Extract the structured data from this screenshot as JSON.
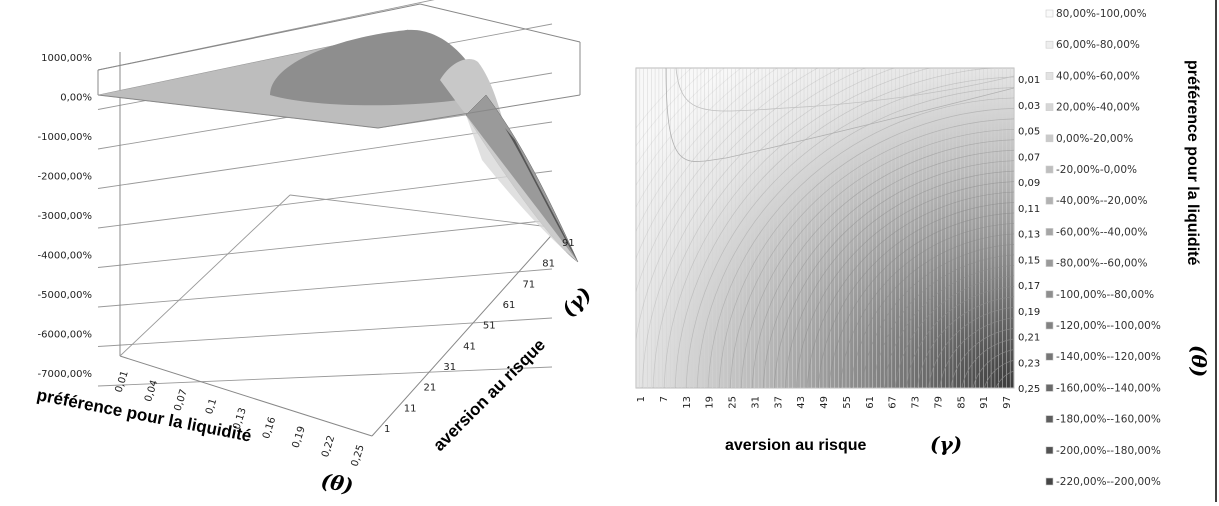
{
  "figure": {
    "panels": [
      "surface-3d",
      "contour"
    ]
  },
  "chart_data": [
    {
      "type": "surface",
      "z_ticks": [
        "1000,00%",
        "0,00%",
        "-1000,00%",
        "-2000,00%",
        "-3000,00%",
        "-4000,00%",
        "-5000,00%",
        "-6000,00%",
        "-7000,00%"
      ],
      "zlim": [
        -7000,
        1000
      ],
      "x_label": "préférence pour la liquidité",
      "x_symbol": "(θ)",
      "x_ticks": [
        "0,01",
        "0,04",
        "0,07",
        "0,1",
        "0,13",
        "0,16",
        "0,19",
        "0,22",
        "0,25"
      ],
      "y_label": "aversion au risque",
      "y_symbol": "(γ)",
      "y_ticks": [
        "1",
        "11",
        "21",
        "31",
        "41",
        "51",
        "61",
        "71",
        "81",
        "91"
      ],
      "shading_levels": [
        "#bdbdbd",
        "#8e8e8e",
        "#c8c8c8",
        "#9a9a9a",
        "#555555"
      ]
    },
    {
      "type": "heatmap",
      "x_label": "aversion au risque",
      "x_symbol": "(γ)",
      "x_ticks": [
        "1",
        "7",
        "13",
        "19",
        "25",
        "31",
        "37",
        "43",
        "49",
        "55",
        "61",
        "67",
        "73",
        "79",
        "85",
        "91",
        "97"
      ],
      "y_label": "préférence pour la liquidité",
      "y_symbol": "(θ)",
      "y_ticks": [
        "0,01",
        "0,03",
        "0,05",
        "0,07",
        "0,09",
        "0,11",
        "0,13",
        "0,15",
        "0,17",
        "0,19",
        "0,21",
        "0,23",
        "0,25"
      ],
      "legend_position": "right",
      "legend": [
        "80,00%-100,00%",
        "60,00%-80,00%",
        "40,00%-60,00%",
        "20,00%-40,00%",
        "0,00%-20,00%",
        "-20,00%-0,00%",
        "-40,00%--20,00%",
        "-60,00%--40,00%",
        "-80,00%--60,00%",
        "-100,00%--80,00%",
        "-120,00%--100,00%",
        "-140,00%--120,00%",
        "-160,00%--140,00%",
        "-180,00%--160,00%",
        "-200,00%--180,00%",
        "-220,00%--200,00%"
      ]
    }
  ]
}
